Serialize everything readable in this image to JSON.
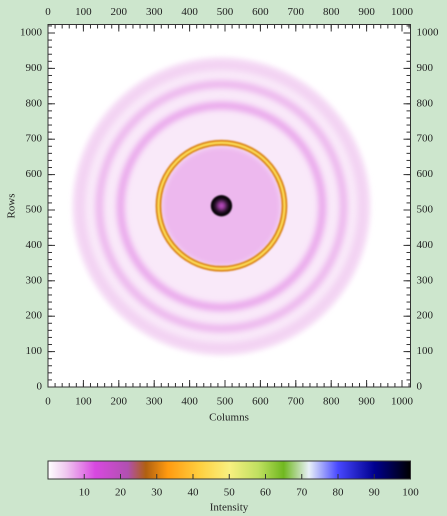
{
  "chart_data": {
    "type": "image",
    "xlabel": "Columns",
    "ylabel": "Rows",
    "xlim": [
      0,
      1024
    ],
    "ylim": [
      0,
      1024
    ],
    "xticks": [
      0,
      100,
      200,
      300,
      400,
      500,
      600,
      700,
      800,
      900,
      1000
    ],
    "yticks": [
      0,
      100,
      200,
      300,
      400,
      500,
      600,
      700,
      800,
      900,
      1000
    ],
    "features": [
      {
        "shape": "disk",
        "x": 490,
        "y": 510,
        "r": 420,
        "width": 0,
        "intensity": 2
      },
      {
        "shape": "ring",
        "x": 490,
        "y": 510,
        "r": 400,
        "width": 30,
        "intensity": 4
      },
      {
        "shape": "ring",
        "x": 490,
        "y": 510,
        "r": 345,
        "width": 22,
        "intensity": 6
      },
      {
        "shape": "ring",
        "x": 490,
        "y": 510,
        "r": 285,
        "width": 22,
        "intensity": 7
      },
      {
        "shape": "disk",
        "x": 490,
        "y": 510,
        "r": 170,
        "width": 0,
        "intensity": 6
      },
      {
        "shape": "ring",
        "x": 490,
        "y": 512,
        "r": 178,
        "width": 16,
        "intensity": 30
      },
      {
        "shape": "ring",
        "x": 490,
        "y": 512,
        "r": 178,
        "width": 7,
        "intensity": 45
      },
      {
        "shape": "disk",
        "x": 490,
        "y": 512,
        "r": 30,
        "width": 0,
        "intensity": 100
      },
      {
        "shape": "disk",
        "x": 490,
        "y": 512,
        "r": 14,
        "width": 0,
        "intensity": 12
      }
    ],
    "colorbar": {
      "label": "Intensity",
      "lim": [
        0,
        100
      ],
      "ticks": [
        10,
        20,
        30,
        40,
        50,
        60,
        70,
        80,
        90,
        100
      ],
      "colormap": [
        {
          "value": 0,
          "color": "#ffffff"
        },
        {
          "value": 5,
          "color": "#f0c8f0"
        },
        {
          "value": 13,
          "color": "#d848e0"
        },
        {
          "value": 22,
          "color": "#b050b0"
        },
        {
          "value": 27,
          "color": "#b06010"
        },
        {
          "value": 33,
          "color": "#ff9a10"
        },
        {
          "value": 42,
          "color": "#ffd040"
        },
        {
          "value": 50,
          "color": "#f8f080"
        },
        {
          "value": 58,
          "color": "#c0e060"
        },
        {
          "value": 65,
          "color": "#70b820"
        },
        {
          "value": 72,
          "color": "#e8f0f8"
        },
        {
          "value": 80,
          "color": "#4848ff"
        },
        {
          "value": 90,
          "color": "#000090"
        },
        {
          "value": 100,
          "color": "#000000"
        }
      ]
    }
  }
}
